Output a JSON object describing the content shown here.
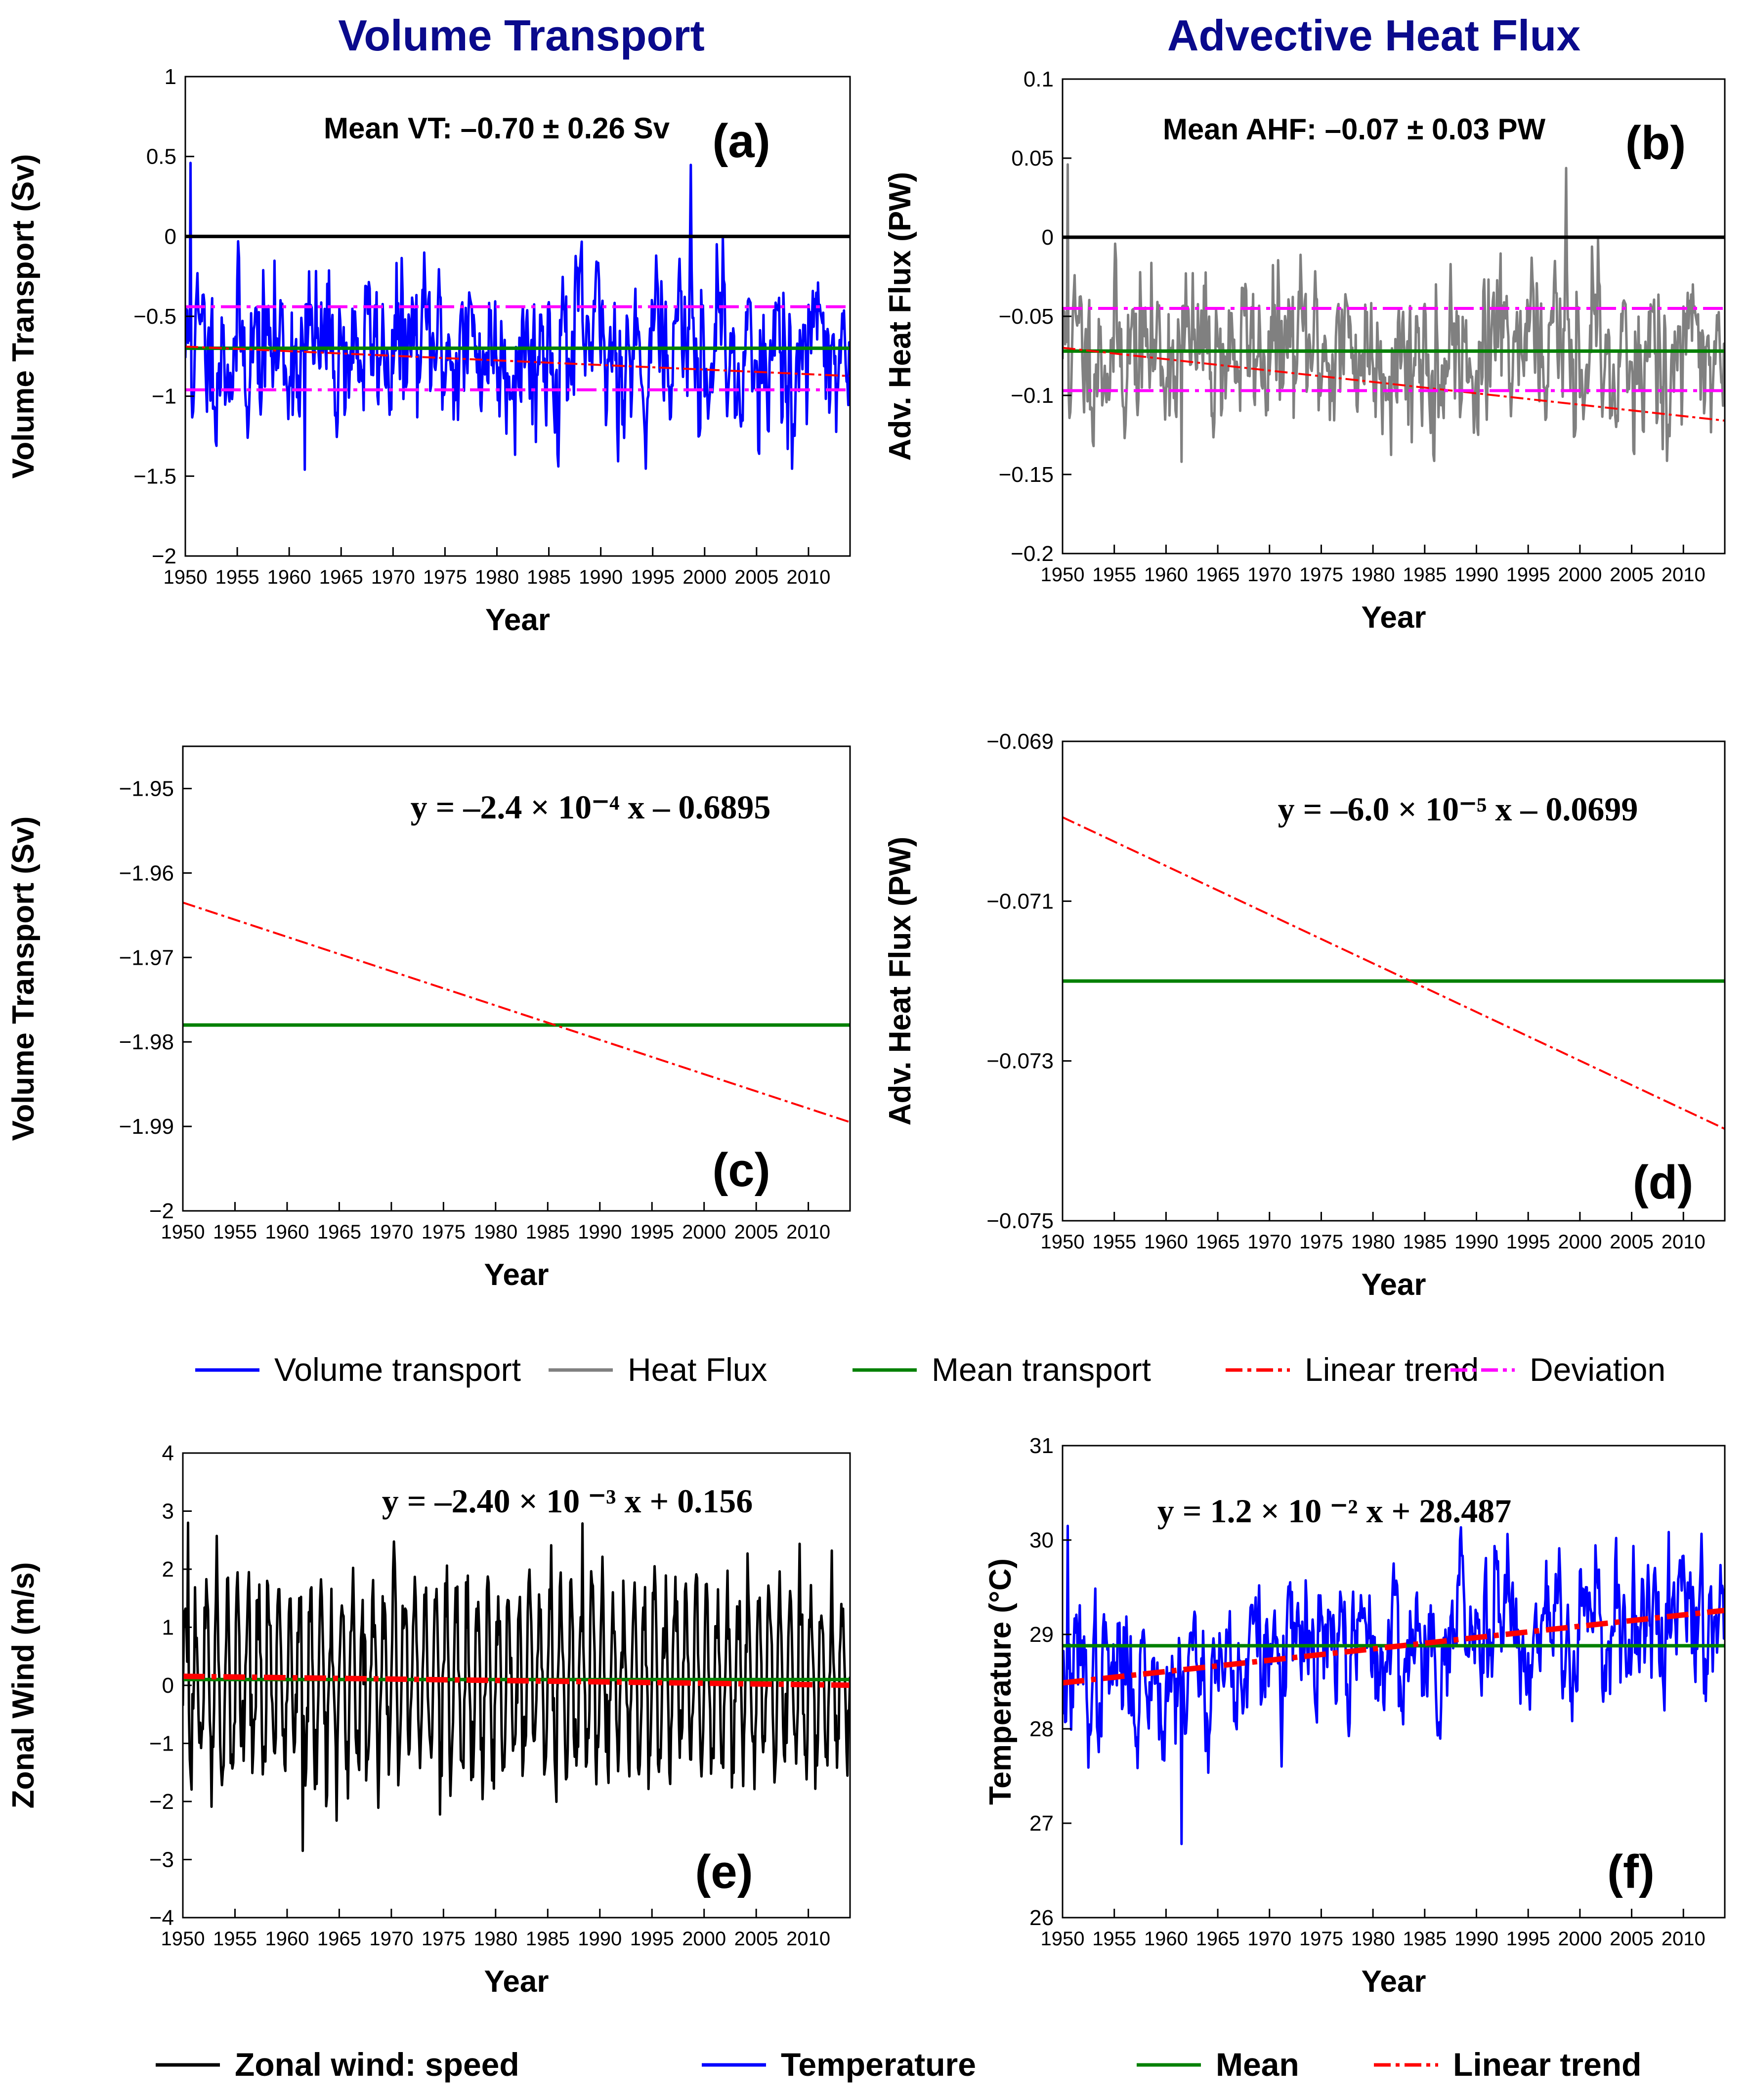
{
  "column_titles": [
    "Volume Transport",
    "Advective Heat Flux"
  ],
  "legend_middle": [
    {
      "label": "Volume transport",
      "color": "#0000ff",
      "style": "solid"
    },
    {
      "label": "Heat Flux",
      "color": "#808080",
      "style": "solid"
    },
    {
      "label": "Mean transport",
      "color": "#008000",
      "style": "solid"
    },
    {
      "label": "Linear trend",
      "color": "#ff0000",
      "style": "dashdot"
    },
    {
      "label": "Deviation",
      "color": "#ff00ff",
      "style": "dashdot"
    }
  ],
  "legend_bottom": [
    {
      "label": "Zonal wind: speed",
      "color": "#000000",
      "style": "solid"
    },
    {
      "label": "Temperature",
      "color": "#0000ff",
      "style": "solid"
    },
    {
      "label": "Mean",
      "color": "#008000",
      "style": "solid"
    },
    {
      "label": "Linear trend",
      "color": "#ff0000",
      "style": "dashdot"
    }
  ],
  "chart_data": [
    {
      "id": "a",
      "type": "line",
      "panel_label": "(a)",
      "annotation": "Mean VT: –0.70 ± 0.26 Sv",
      "xlabel": "Year",
      "ylabel": "Volume Transport (Sv)",
      "xlim": [
        1950,
        2014
      ],
      "ylim": [
        -2,
        1
      ],
      "xticks": [
        1950,
        1955,
        1960,
        1965,
        1970,
        1975,
        1980,
        1985,
        1990,
        1995,
        2000,
        2005,
        2010
      ],
      "yticks": [
        -2,
        -1.5,
        -1,
        -0.5,
        0,
        0.5,
        1
      ],
      "ytick_labels": [
        "−2",
        "−1.5",
        "−1",
        "−0.5",
        "0",
        "0.5",
        "1"
      ],
      "series": [
        {
          "name": "Volume transport",
          "kind": "monthly",
          "color": "#0000ff",
          "mean": -0.7,
          "std": 0.26,
          "min": -1.46,
          "max": 0.46,
          "seed": 11
        },
        {
          "name": "Zero",
          "kind": "hline",
          "value": 0,
          "color": "#000000"
        },
        {
          "name": "Mean transport",
          "kind": "hline",
          "value": -0.7,
          "color": "#008000"
        },
        {
          "name": "Linear trend",
          "kind": "trend",
          "slope": -0.00024,
          "intercept": -0.6895,
          "color": "#ff0000"
        },
        {
          "name": "Deviation upper",
          "kind": "hline",
          "value": -0.44,
          "color": "#ff00ff",
          "dash": true
        },
        {
          "name": "Deviation lower",
          "kind": "hline",
          "value": -0.96,
          "color": "#ff00ff",
          "dash": true
        }
      ]
    },
    {
      "id": "b",
      "type": "line",
      "panel_label": "(b)",
      "annotation": "Mean AHF: –0.07 ± 0.03 PW",
      "xlabel": "Year",
      "ylabel": "Adv. Heat Flux (PW)",
      "xlim": [
        1950,
        2014
      ],
      "ylim": [
        -0.2,
        0.1
      ],
      "xticks": [
        1950,
        1955,
        1960,
        1965,
        1970,
        1975,
        1980,
        1985,
        1990,
        1995,
        2000,
        2005,
        2010
      ],
      "yticks": [
        -0.2,
        -0.15,
        -0.1,
        -0.05,
        0,
        0.05,
        0.1
      ],
      "ytick_labels": [
        "−0.2",
        "−0.15",
        "−0.1",
        "−0.05",
        "0",
        "0.05",
        "0.1"
      ],
      "series": [
        {
          "name": "Heat Flux",
          "kind": "monthly",
          "color": "#808080",
          "mean": -0.071,
          "std": 0.026,
          "min": -0.142,
          "max": 0.046,
          "seed": 11
        },
        {
          "name": "Zero",
          "kind": "hline",
          "value": 0,
          "color": "#000000"
        },
        {
          "name": "Mean transport",
          "kind": "hline",
          "value": -0.072,
          "color": "#008000"
        },
        {
          "name": "Linear trend",
          "kind": "trend",
          "slope": -6e-05,
          "intercept": -0.0699,
          "color": "#ff0000"
        },
        {
          "name": "Deviation upper",
          "kind": "hline",
          "value": -0.045,
          "color": "#ff00ff",
          "dash": true
        },
        {
          "name": "Deviation lower",
          "kind": "hline",
          "value": -0.097,
          "color": "#ff00ff",
          "dash": true
        }
      ]
    },
    {
      "id": "c",
      "type": "line",
      "panel_label": "(c)",
      "equation": "y = –2.4 × 10⁻⁴ x – 0.6895",
      "xlabel": "Year",
      "ylabel": "Volume Transport (Sv)",
      "xlim": [
        1950,
        2014
      ],
      "ylim": [
        -2,
        -1.945
      ],
      "xticks": [
        1950,
        1955,
        1960,
        1965,
        1970,
        1975,
        1980,
        1985,
        1990,
        1995,
        2000,
        2005,
        2010
      ],
      "yticks": [
        -2,
        -1.99,
        -1.98,
        -1.97,
        -1.96,
        -1.95
      ],
      "ytick_labels": [
        "−2",
        "−1.99",
        "−1.98",
        "−1.97",
        "−1.96",
        "−1.95"
      ],
      "series": [
        {
          "name": "Mean transport",
          "kind": "hline",
          "value": -1.978,
          "color": "#008000"
        },
        {
          "name": "Linear trend",
          "kind": "line",
          "x": [
            1950,
            2014
          ],
          "y": [
            -1.9635,
            -1.9895
          ],
          "color": "#ff0000"
        }
      ]
    },
    {
      "id": "d",
      "type": "line",
      "panel_label": "(d)",
      "equation": "y = –6.0 × 10⁻⁵ x – 0.0699",
      "xlabel": "Year",
      "ylabel": "Adv. Heat Flux (PW)",
      "xlim": [
        1950,
        2014
      ],
      "ylim": [
        -0.075,
        -0.069
      ],
      "xticks": [
        1950,
        1955,
        1960,
        1965,
        1970,
        1975,
        1980,
        1985,
        1990,
        1995,
        2000,
        2005,
        2010
      ],
      "yticks": [
        -0.075,
        -0.073,
        -0.071,
        -0.069
      ],
      "ytick_labels": [
        "−0.075",
        "−0.073",
        "−0.071",
        "−0.069"
      ],
      "series": [
        {
          "name": "Mean transport",
          "kind": "hline",
          "value": -0.072,
          "color": "#008000"
        },
        {
          "name": "Linear trend",
          "kind": "line",
          "x": [
            1950,
            2014
          ],
          "y": [
            -0.06995,
            -0.07385
          ],
          "color": "#ff0000"
        }
      ]
    },
    {
      "id": "e",
      "type": "line",
      "panel_label": "(e)",
      "equation": "y = –2.40 × 10 ⁻³ x + 0.156",
      "xlabel": "Year",
      "ylabel": "Zonal Wind (m/s)",
      "xlim": [
        1950,
        2014
      ],
      "ylim": [
        -4,
        4
      ],
      "xticks": [
        1950,
        1955,
        1960,
        1965,
        1970,
        1975,
        1980,
        1985,
        1990,
        1995,
        2000,
        2005,
        2010
      ],
      "yticks": [
        -4,
        -3,
        -2,
        -1,
        0,
        1,
        2,
        3,
        4
      ],
      "ytick_labels": [
        "−4",
        "−3",
        "−2",
        "−1",
        "0",
        "1",
        "2",
        "3",
        "4"
      ],
      "series": [
        {
          "name": "Zonal wind: speed",
          "kind": "seasonal",
          "color": "#000000",
          "mean": 0.1,
          "amp": 1.9,
          "min": -2.85,
          "max": 2.8,
          "seed": 23
        },
        {
          "name": "Mean",
          "kind": "hline",
          "value": 0.1,
          "color": "#008000"
        },
        {
          "name": "Linear trend",
          "kind": "trend",
          "slope": -0.0024,
          "intercept": 0.156,
          "color": "#ff0000",
          "thick": true
        }
      ]
    },
    {
      "id": "f",
      "type": "line",
      "panel_label": "(f)",
      "equation": "y = 1.2 × 10 ⁻² x + 28.487",
      "xlabel": "Year",
      "ylabel": "Temperature (°C)",
      "xlim": [
        1950,
        2014
      ],
      "ylim": [
        26,
        31
      ],
      "xticks": [
        1950,
        1955,
        1960,
        1965,
        1970,
        1975,
        1980,
        1985,
        1990,
        1995,
        2000,
        2005,
        2010
      ],
      "yticks": [
        26,
        27,
        28,
        29,
        30,
        31
      ],
      "ytick_labels": [
        "26",
        "27",
        "28",
        "29",
        "30",
        "31"
      ],
      "series": [
        {
          "name": "Temperature",
          "kind": "monthly_trend",
          "color": "#0000ff",
          "base": 28.487,
          "slope": 0.012,
          "std": 0.42,
          "min": 26.78,
          "max": 30.15,
          "seed": 37
        },
        {
          "name": "Mean",
          "kind": "hline",
          "value": 28.88,
          "color": "#008000"
        },
        {
          "name": "Linear trend",
          "kind": "trend",
          "slope": 0.012,
          "intercept": 28.487,
          "color": "#ff0000",
          "thick": true
        }
      ]
    }
  ]
}
